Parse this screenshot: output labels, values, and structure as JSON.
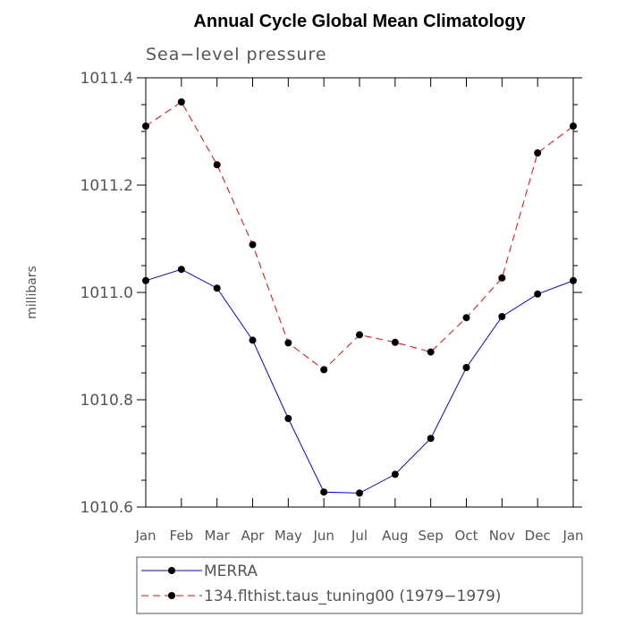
{
  "chart_data": {
    "type": "line",
    "title": "Annual Cycle Global Mean Climatology",
    "subtitle": "Sea−level pressure",
    "xlabel": "",
    "ylabel": "millibars",
    "categories": [
      "Jan",
      "Feb",
      "Mar",
      "Apr",
      "May",
      "Jun",
      "Jul",
      "Aug",
      "Sep",
      "Oct",
      "Nov",
      "Dec",
      "Jan"
    ],
    "ylim": [
      1010.6,
      1011.4
    ],
    "yticks": [
      1010.6,
      1010.8,
      1011.0,
      1011.2,
      1011.4
    ],
    "ytick_labels": [
      "1010.6",
      "1010.8",
      "1011.0",
      "1011.2",
      "1011.4"
    ],
    "grid": false,
    "legend_position": "bottom",
    "series": [
      {
        "name": "MERRA",
        "color": "#0000ff",
        "line_style": "solid",
        "marker": "filled-circle",
        "values": [
          1011.022,
          1011.043,
          1011.008,
          1010.911,
          1010.765,
          1010.628,
          1010.626,
          1010.661,
          1010.728,
          1010.86,
          1010.955,
          1010.997,
          1011.022
        ]
      },
      {
        "name": "134.flthist.taus_tuning00 (1979−1979)",
        "color": "#ff0000",
        "line_style": "dashed",
        "marker": "filled-circle",
        "values": [
          1011.31,
          1011.355,
          1011.238,
          1011.089,
          1010.906,
          1010.856,
          1010.921,
          1010.907,
          1010.889,
          1010.953,
          1011.027,
          1011.26,
          1011.31
        ]
      }
    ]
  }
}
